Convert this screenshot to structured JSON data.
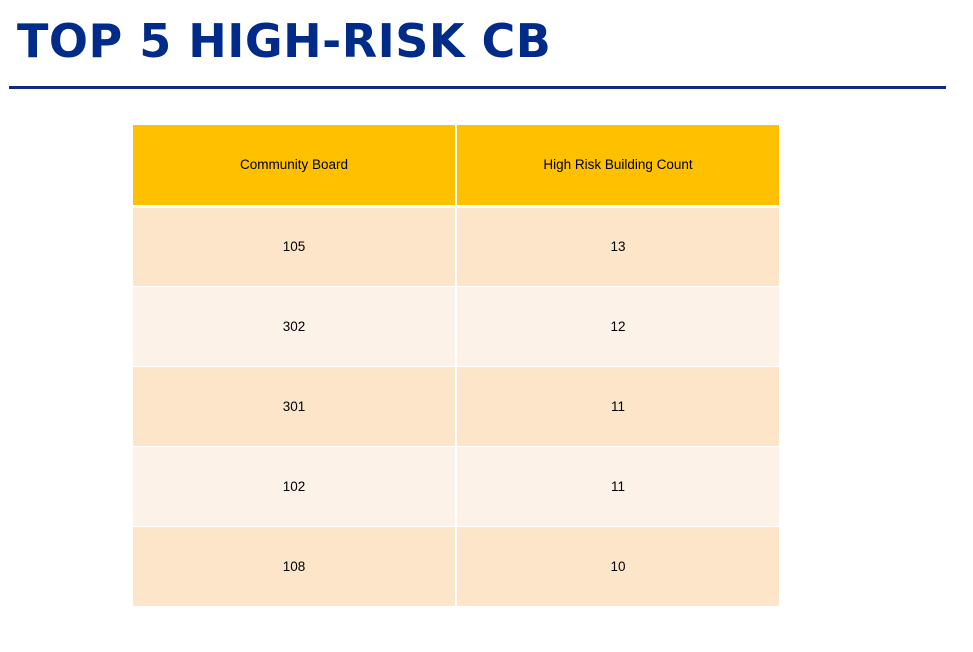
{
  "slide": {
    "title": "TOP 5 HIGH-RISK CB"
  },
  "table": {
    "headers": [
      "Community Board",
      "High Risk Building Count"
    ],
    "rows": [
      [
        "105",
        "13"
      ],
      [
        "302",
        "12"
      ],
      [
        "301",
        "11"
      ],
      [
        "102",
        "11"
      ],
      [
        "108",
        "10"
      ]
    ],
    "colors": {
      "header_bg": "#FFC000",
      "row_bg_dark": "#FDE5C9",
      "row_bg_light": "#FDF2E7",
      "title_color": "#002B88"
    }
  }
}
